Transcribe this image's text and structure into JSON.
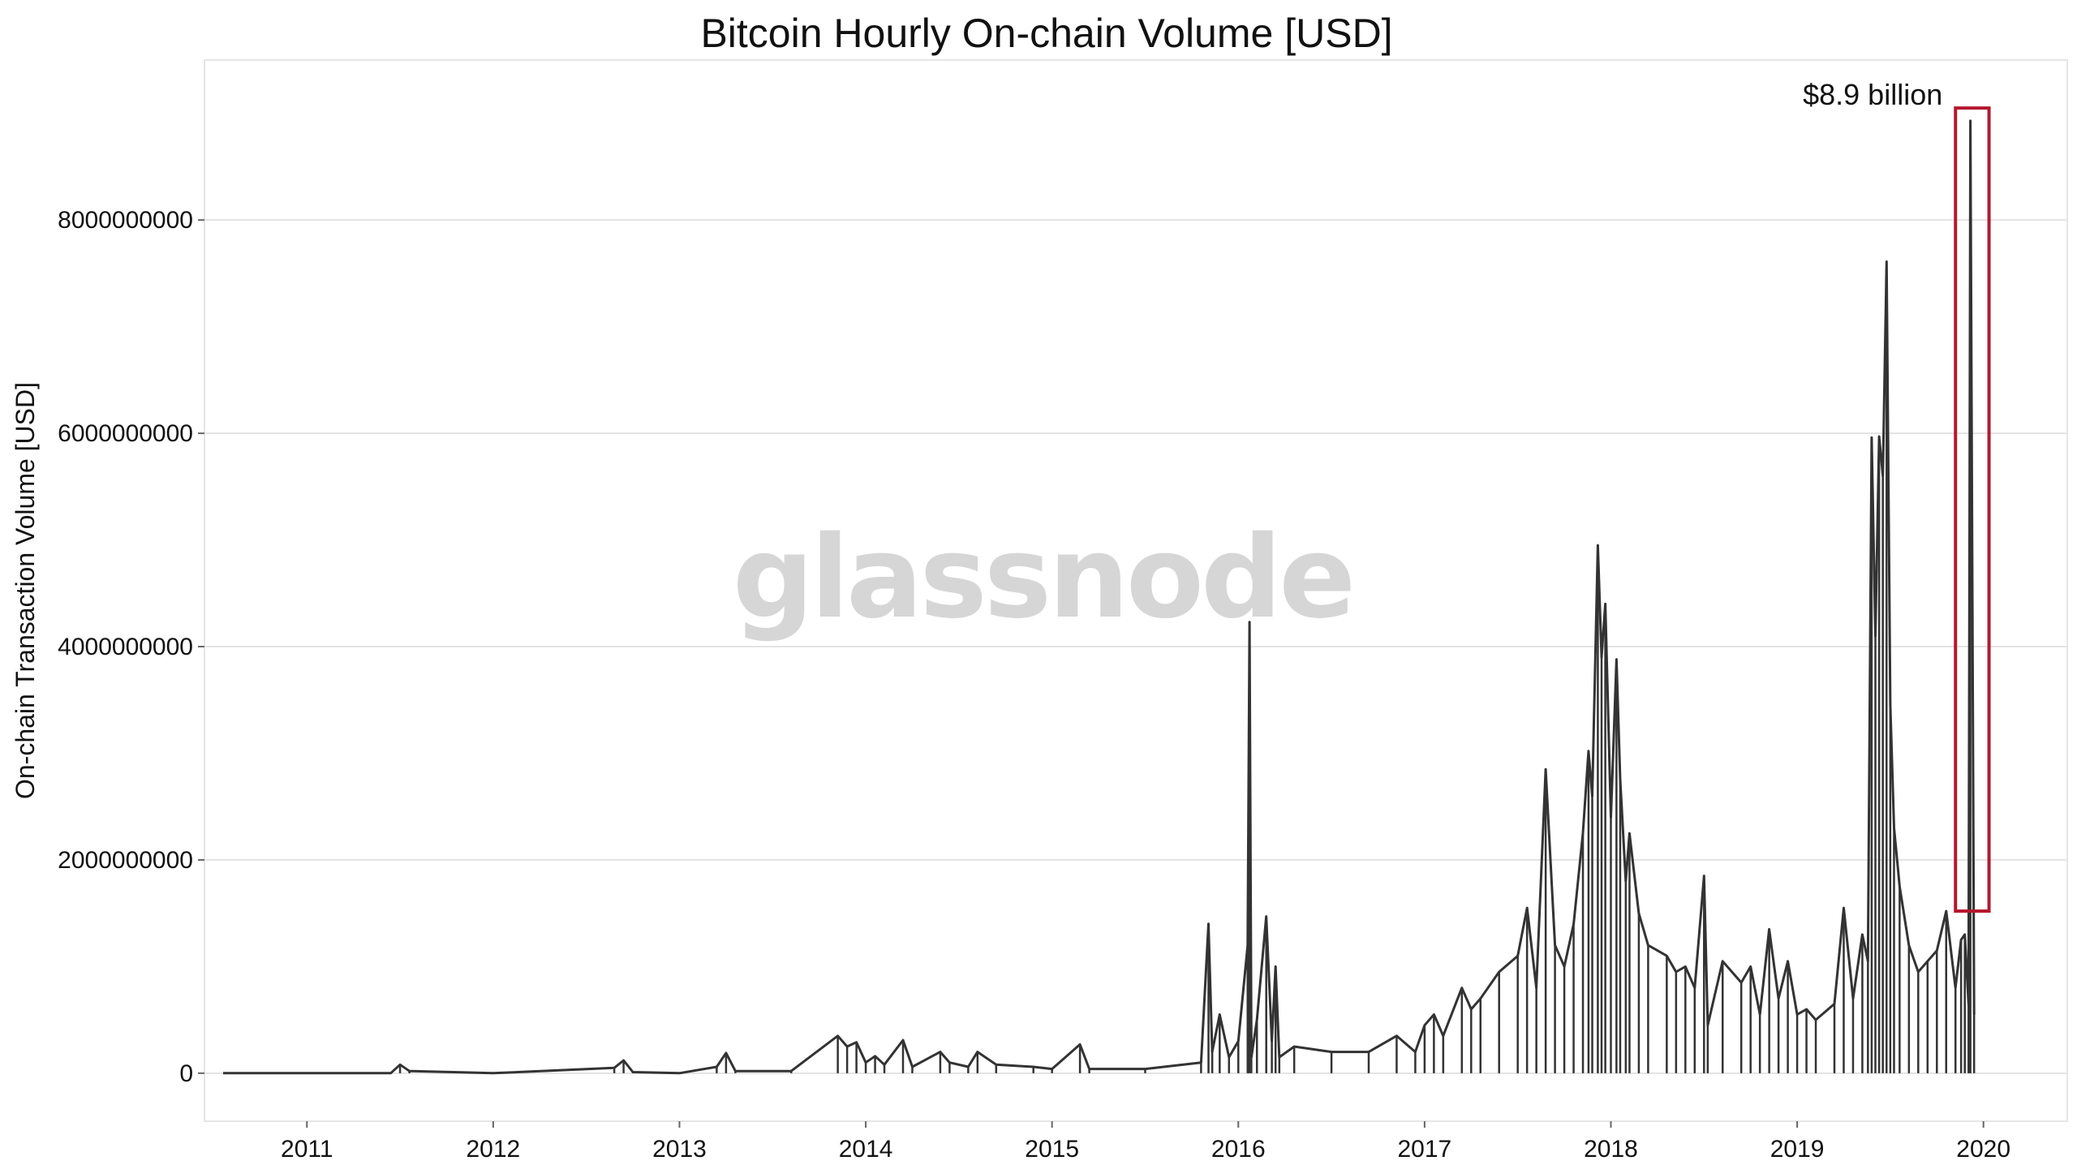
{
  "chart_data": {
    "type": "line",
    "title": "Bitcoin Hourly On-chain Volume [USD]",
    "xlabel": "",
    "ylabel": "On-chain Transaction Volume [USD]",
    "xlim": [
      2010.45,
      2020.45
    ],
    "ylim": [
      -450000000,
      9500000000
    ],
    "y_ticks": [
      0,
      2000000000,
      4000000000,
      6000000000,
      8000000000
    ],
    "y_tick_labels": [
      "0",
      "2000000000",
      "4000000000",
      "6000000000",
      "8000000000"
    ],
    "x_ticks": [
      2011,
      2012,
      2013,
      2014,
      2015,
      2016,
      2017,
      2018,
      2019,
      2020
    ],
    "x_tick_labels": [
      "2011",
      "2012",
      "2013",
      "2014",
      "2015",
      "2016",
      "2017",
      "2018",
      "2019",
      "2020"
    ],
    "grid": "horizontal",
    "series": [
      {
        "color": "#333333",
        "x": [
          2010.55,
          2011.0,
          2011.45,
          2011.5,
          2011.55,
          2012.0,
          2012.65,
          2012.7,
          2012.75,
          2013.0,
          2013.2,
          2013.25,
          2013.3,
          2013.6,
          2013.85,
          2013.9,
          2013.95,
          2014.0,
          2014.05,
          2014.1,
          2014.2,
          2014.25,
          2014.4,
          2014.45,
          2014.55,
          2014.6,
          2014.7,
          2014.9,
          2015.0,
          2015.15,
          2015.2,
          2015.5,
          2015.8,
          2015.84,
          2015.86,
          2015.9,
          2015.95,
          2016.0,
          2016.05,
          2016.06,
          2016.07,
          2016.1,
          2016.15,
          2016.18,
          2016.2,
          2016.22,
          2016.3,
          2016.5,
          2016.7,
          2016.85,
          2016.95,
          2017.0,
          2017.05,
          2017.1,
          2017.2,
          2017.25,
          2017.3,
          2017.4,
          2017.5,
          2017.55,
          2017.6,
          2017.65,
          2017.7,
          2017.75,
          2017.8,
          2017.85,
          2017.88,
          2017.9,
          2017.93,
          2017.95,
          2017.97,
          2018.0,
          2018.03,
          2018.05,
          2018.08,
          2018.1,
          2018.15,
          2018.2,
          2018.3,
          2018.35,
          2018.4,
          2018.45,
          2018.5,
          2018.52,
          2018.6,
          2018.7,
          2018.75,
          2018.8,
          2018.85,
          2018.9,
          2018.95,
          2019.0,
          2019.05,
          2019.1,
          2019.2,
          2019.25,
          2019.3,
          2019.35,
          2019.38,
          2019.4,
          2019.42,
          2019.44,
          2019.46,
          2019.48,
          2019.5,
          2019.52,
          2019.55,
          2019.6,
          2019.65,
          2019.7,
          2019.75,
          2019.8,
          2019.85,
          2019.88,
          2019.9,
          2019.92,
          2019.93,
          2019.95
        ],
        "y": [
          0,
          0,
          0,
          80000000,
          20000000,
          0,
          50000000,
          120000000,
          10000000,
          0,
          60000000,
          190000000,
          20000000,
          20000000,
          350000000,
          250000000,
          290000000,
          100000000,
          160000000,
          80000000,
          310000000,
          60000000,
          200000000,
          100000000,
          60000000,
          200000000,
          80000000,
          60000000,
          40000000,
          270000000,
          40000000,
          40000000,
          100000000,
          1400000000,
          200000000,
          550000000,
          150000000,
          300000000,
          1200000000,
          4230000000,
          150000000,
          500000000,
          1470000000,
          300000000,
          1000000000,
          150000000,
          250000000,
          200000000,
          200000000,
          350000000,
          200000000,
          450000000,
          550000000,
          350000000,
          800000000,
          600000000,
          700000000,
          950000000,
          1100000000,
          1550000000,
          800000000,
          2850000000,
          1200000000,
          1000000000,
          1400000000,
          2250000000,
          3020000000,
          2600000000,
          4950000000,
          3900000000,
          4400000000,
          2400000000,
          3880000000,
          2750000000,
          1800000000,
          2250000000,
          1500000000,
          1200000000,
          1100000000,
          950000000,
          1000000000,
          800000000,
          1850000000,
          450000000,
          1050000000,
          850000000,
          1000000000,
          550000000,
          1350000000,
          700000000,
          1050000000,
          550000000,
          600000000,
          500000000,
          650000000,
          1550000000,
          700000000,
          1300000000,
          1050000000,
          5960000000,
          4100000000,
          5970000000,
          5600000000,
          7610000000,
          3450000000,
          2300000000,
          1750000000,
          1200000000,
          950000000,
          1050000000,
          1150000000,
          1520000000,
          800000000,
          1250000000,
          1300000000,
          650000000,
          8930000000,
          550000000
        ]
      }
    ],
    "annotations": [
      {
        "text": "$8.9 billion",
        "x": 2019.93,
        "y": 8930000000
      }
    ],
    "highlight_box": {
      "x0": 2019.85,
      "x1": 2020.03,
      "y0": 1520000000,
      "y1": 9050000000,
      "color": "#b5172f"
    },
    "watermark": "glassnode"
  }
}
